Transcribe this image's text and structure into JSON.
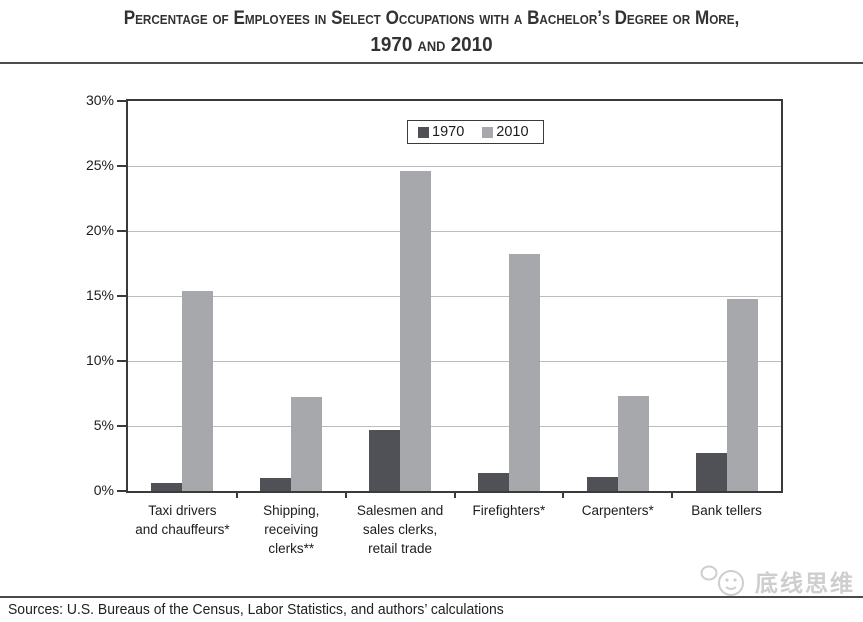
{
  "title": {
    "line1": "Percentage of Employees in Select Occupations with a Bachelor’s Degree or More,",
    "line2": "1970 and 2010"
  },
  "chart_data": {
    "type": "bar",
    "categories": [
      [
        "Taxi drivers",
        "and chauffeurs*"
      ],
      [
        "Shipping,",
        "receiving",
        "clerks**"
      ],
      [
        "Salesmen and",
        "sales clerks,",
        "retail trade"
      ],
      [
        "Firefighters*"
      ],
      [
        "Carpenters*"
      ],
      [
        "Bank tellers"
      ]
    ],
    "series": [
      {
        "name": "1970",
        "color": "#505156",
        "values": [
          0.6,
          1.0,
          4.7,
          1.4,
          1.1,
          2.9
        ]
      },
      {
        "name": "2010",
        "color": "#a7a8ab",
        "values": [
          15.4,
          7.2,
          24.6,
          18.2,
          7.3,
          14.8
        ]
      }
    ],
    "title": "Percentage of Employees in Select Occupations with a Bachelor’s Degree or More, 1970 and 2010",
    "xlabel": "",
    "ylabel": "",
    "ylim": [
      0,
      30
    ],
    "ytick_step": 5,
    "ytick_suffix": "%",
    "grid": true,
    "legend_position": "top-center"
  },
  "footer": {
    "sources": "Sources: U.S. Bureaus of the Census, Labor Statistics, and authors’ calculations"
  },
  "watermark": {
    "text": "底线思维"
  },
  "colors": {
    "frame": "#3a3a3b",
    "gridline": "#bcbcbc",
    "bar_1970": "#505156",
    "bar_2010": "#a7a8ab"
  }
}
